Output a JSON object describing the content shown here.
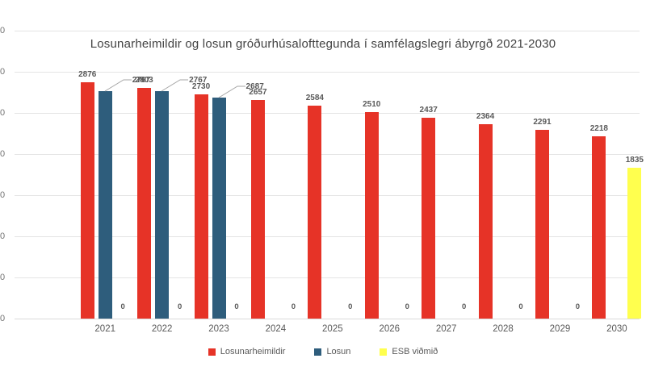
{
  "chart_data": {
    "type": "bar",
    "title": "Losunarheimildir og losun gróðurhúsalofttegunda í samfélagslegri ábyrgð 2021-2030",
    "categories": [
      "2021",
      "2022",
      "2023",
      "2024",
      "2025",
      "2026",
      "2027",
      "2028",
      "2029",
      "2030"
    ],
    "series": [
      {
        "name": "Losunarheimildir",
        "color": "#E63327",
        "values": [
          2876,
          2803,
          2730,
          2657,
          2584,
          2510,
          2437,
          2364,
          2291,
          2218
        ]
      },
      {
        "name": "Losun",
        "color": "#2E5D7C",
        "values": [
          2767,
          2767,
          2687,
          null,
          null,
          null,
          null,
          null,
          null,
          null
        ]
      },
      {
        "name": "ESB viðmið",
        "color": "#FFFF4E",
        "values": [
          0,
          0,
          0,
          0,
          0,
          0,
          0,
          0,
          0,
          1835
        ]
      }
    ],
    "ylim": [
      0,
      3500
    ],
    "y_tick_step": 500,
    "y_axis_visible_tick_labels": [
      "0",
      "0",
      "0",
      "0",
      "0",
      "0",
      "0",
      "0"
    ],
    "gridlines": true,
    "data_labels": true,
    "legend_position": "bottom"
  },
  "legend": {
    "items": [
      {
        "label": "Losunarheimildir",
        "color": "#E63327"
      },
      {
        "label": "Losun",
        "color": "#2E5D7C"
      },
      {
        "label": "ESB viðmið",
        "color": "#FFFF4E"
      }
    ]
  },
  "colors": {
    "background": "#FFFFFF",
    "text": "#595959",
    "title_text": "#424242",
    "grid": "#E4E4E4",
    "axis": "#D9D9D9",
    "leader_line": "#A6A6A6"
  }
}
